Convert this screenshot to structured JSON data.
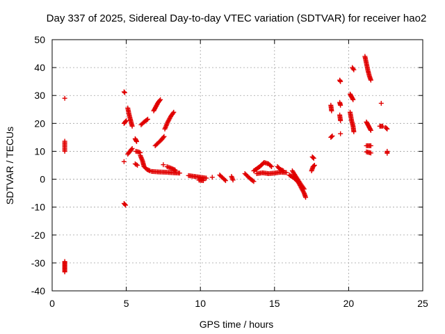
{
  "chart_data": {
    "type": "scatter",
    "title": "Day 337 of 2025, Sidereal Day-to-day VTEC variation (SDTVAR) for receiver hao2",
    "xlabel": "GPS time / hours",
    "ylabel": "SDTVAR / TECUs",
    "xlim": [
      0,
      25
    ],
    "ylim": [
      -40,
      50
    ],
    "x_ticks": [
      0,
      5,
      10,
      15,
      20,
      25
    ],
    "y_ticks": [
      -40,
      -30,
      -20,
      -10,
      0,
      10,
      20,
      30,
      40,
      50
    ],
    "x_tick_labels": [
      "0",
      "5",
      "10",
      "15",
      "20",
      "25"
    ],
    "y_tick_labels": [
      "-40",
      "-30",
      "-20",
      "-10",
      "0",
      "10",
      "20",
      "30",
      "40",
      "50"
    ],
    "grid": true,
    "marker": "+",
    "color": "#e00000",
    "series": [
      {
        "segments": [
          [
            [
              0.85,
              29
            ]
          ],
          [
            [
              0.85,
              13.6
            ],
            [
              0.85,
              10
            ]
          ],
          [
            [
              0.85,
              -29.5
            ],
            [
              0.85,
              -30.5
            ],
            [
              0.85,
              -31.5
            ],
            [
              0.85,
              -32.5
            ],
            [
              0.85,
              -33.2
            ]
          ],
          [
            [
              4.85,
              31.3
            ],
            [
              4.9,
              31
            ]
          ],
          [
            [
              4.85,
              20
            ],
            [
              5.0,
              21
            ]
          ],
          [
            [
              4.85,
              6.3
            ]
          ],
          [
            [
              4.85,
              -8.7
            ],
            [
              4.95,
              -9.3
            ]
          ],
          [
            [
              5.1,
              25.5
            ],
            [
              5.2,
              23
            ],
            [
              5.3,
              21
            ],
            [
              5.4,
              19
            ]
          ],
          [
            [
              5.1,
              9
            ],
            [
              5.25,
              10
            ],
            [
              5.4,
              11
            ]
          ],
          [
            [
              5.6,
              14.5
            ],
            [
              5.65,
              14
            ],
            [
              5.7,
              13.5
            ]
          ],
          [
            [
              5.65,
              10
            ],
            [
              5.8,
              9.8
            ],
            [
              5.95,
              9.5
            ]
          ],
          [
            [
              5.6,
              5.5
            ],
            [
              5.75,
              5
            ]
          ],
          [
            [
              5.95,
              8.5
            ],
            [
              6.1,
              6.5
            ],
            [
              6.2,
              4.5
            ],
            [
              6.4,
              3.5
            ],
            [
              6.6,
              3
            ]
          ],
          [
            [
              6.0,
              19.5
            ],
            [
              6.2,
              20.5
            ],
            [
              6.45,
              21.5
            ]
          ],
          [
            [
              6.85,
              24.5
            ],
            [
              7.0,
              26
            ],
            [
              7.15,
              27.5
            ],
            [
              7.3,
              28.5
            ]
          ],
          [
            [
              6.95,
              12
            ],
            [
              7.15,
              13
            ],
            [
              7.35,
              14
            ],
            [
              7.55,
              15.3
            ]
          ],
          [
            [
              6.7,
              2.8
            ],
            [
              7.2,
              2.6
            ],
            [
              7.7,
              2.5
            ],
            [
              8.2,
              2.3
            ],
            [
              8.6,
              2.2
            ]
          ],
          [
            [
              7.5,
              5.2
            ]
          ],
          [
            [
              7.6,
              18
            ],
            [
              7.8,
              20.5
            ],
            [
              8.0,
              22.5
            ],
            [
              8.2,
              24
            ]
          ],
          [
            [
              7.75,
              4.5
            ],
            [
              8.0,
              4
            ],
            [
              8.3,
              3.3
            ]
          ],
          [
            [
              9.2,
              1.3
            ],
            [
              9.6,
              1
            ],
            [
              10.0,
              0.7
            ],
            [
              10.4,
              0.4
            ]
          ],
          [
            [
              9.9,
              -0.3
            ],
            [
              10.2,
              -0.5
            ]
          ],
          [
            [
              10.8,
              0.7
            ]
          ],
          [
            [
              11.3,
              1.5
            ],
            [
              11.5,
              0.5
            ],
            [
              11.7,
              -0.5
            ]
          ],
          [
            [
              12.1,
              1
            ],
            [
              12.2,
              -0.3
            ]
          ],
          [
            [
              13.0,
              2
            ],
            [
              13.2,
              1
            ],
            [
              13.4,
              0
            ],
            [
              13.6,
              -0.8
            ]
          ],
          [
            [
              13.6,
              3
            ],
            [
              14.0,
              4.5
            ],
            [
              14.3,
              6
            ],
            [
              14.6,
              5.5
            ],
            [
              14.8,
              4.5
            ]
          ],
          [
            [
              13.8,
              2
            ],
            [
              14.2,
              2.3
            ],
            [
              14.6,
              2
            ],
            [
              15.0,
              2.2
            ],
            [
              15.4,
              2.5
            ],
            [
              15.8,
              2.4
            ]
          ],
          [
            [
              15.2,
              4.5
            ],
            [
              15.4,
              3.5
            ],
            [
              15.6,
              3
            ]
          ],
          [
            [
              16.0,
              1.5
            ],
            [
              16.3,
              0.5
            ],
            [
              16.6,
              -1
            ],
            [
              16.8,
              -3
            ],
            [
              17.0,
              -5
            ],
            [
              17.1,
              -6.5
            ]
          ],
          [
            [
              16.2,
              3
            ],
            [
              16.5,
              0.5
            ],
            [
              16.8,
              -2
            ],
            [
              17.0,
              -3.5
            ]
          ],
          [
            [
              17.55,
              8
            ],
            [
              17.65,
              7.5
            ]
          ],
          [
            [
              17.5,
              3
            ],
            [
              17.6,
              4.5
            ],
            [
              17.7,
              5
            ]
          ],
          [
            [
              18.8,
              26.5
            ],
            [
              18.85,
              24.5
            ]
          ],
          [
            [
              18.8,
              15
            ],
            [
              18.9,
              15.5
            ]
          ],
          [
            [
              19.4,
              35.5
            ],
            [
              19.45,
              35
            ]
          ],
          [
            [
              19.4,
              27.5
            ],
            [
              19.45,
              26.5
            ]
          ],
          [
            [
              19.4,
              23
            ],
            [
              19.45,
              21
            ]
          ],
          [
            [
              19.45,
              16.3
            ]
          ],
          [
            [
              20.1,
              30.5
            ],
            [
              20.2,
              29.5
            ],
            [
              20.3,
              28.5
            ]
          ],
          [
            [
              20.1,
              24
            ],
            [
              20.2,
              21
            ],
            [
              20.3,
              19
            ],
            [
              20.35,
              17
            ]
          ],
          [
            [
              20.25,
              40
            ],
            [
              20.35,
              39.2
            ]
          ],
          [
            [
              21.1,
              44
            ],
            [
              21.2,
              41.5
            ],
            [
              21.3,
              39
            ],
            [
              21.4,
              37
            ],
            [
              21.5,
              35.5
            ]
          ],
          [
            [
              21.2,
              20.5
            ],
            [
              21.3,
              19.5
            ],
            [
              21.4,
              18.5
            ],
            [
              21.5,
              17.5
            ]
          ],
          [
            [
              21.2,
              12
            ],
            [
              21.35,
              12
            ],
            [
              21.5,
              12
            ]
          ],
          [
            [
              21.2,
              9.8
            ],
            [
              21.35,
              9.6
            ],
            [
              21.5,
              9.4
            ]
          ],
          [
            [
              22.2,
              27.2
            ]
          ],
          [
            [
              22.1,
              19
            ],
            [
              22.3,
              19
            ]
          ],
          [
            [
              22.5,
              18.5
            ],
            [
              22.6,
              18
            ]
          ],
          [
            [
              22.6,
              10
            ],
            [
              22.6,
              9.3
            ]
          ]
        ]
      }
    ]
  }
}
